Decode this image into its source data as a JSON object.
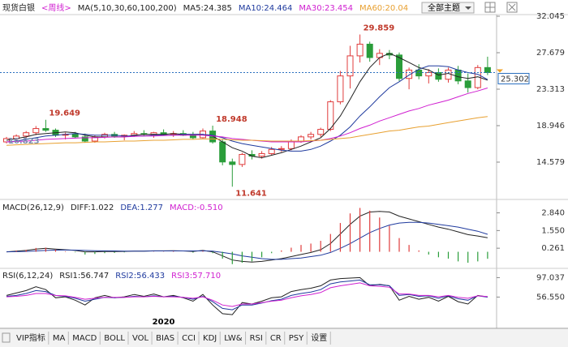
{
  "chart_data": [
    {
      "type": "candlestick",
      "title": "现货白银",
      "subtitle": "<周线>",
      "indicator": "MA(5,10,30,60,100,200)",
      "up_color": "#e03c3c",
      "down_color": "#2a9d3a",
      "categories": [
        null,
        null,
        null,
        null,
        null,
        null,
        null,
        null,
        null,
        null,
        null,
        null,
        null,
        null,
        null,
        null,
        "2020",
        null,
        null,
        null,
        null,
        null,
        null,
        null,
        null,
        null,
        null,
        null,
        null,
        null,
        null,
        null,
        null,
        null,
        null,
        null,
        null,
        null,
        null,
        null,
        null,
        null,
        null,
        null,
        null,
        null,
        null,
        null,
        null,
        null
      ],
      "open": [
        17.0,
        17.4,
        17.7,
        18.1,
        18.6,
        18.4,
        17.8,
        17.9,
        17.6,
        17.1,
        17.6,
        17.9,
        17.7,
        17.8,
        18.0,
        17.9,
        18.1,
        17.9,
        18.0,
        17.8,
        17.5,
        18.3,
        17.0,
        14.6,
        14.3,
        15.5,
        15.3,
        15.6,
        16.1,
        16.2,
        17.1,
        17.6,
        17.9,
        18.5,
        21.8,
        24.9,
        27.3,
        28.7,
        27.1,
        27.6,
        27.4,
        24.6,
        25.6,
        24.9,
        25.3,
        24.5,
        25.6,
        24.3,
        23.5,
        25.9
      ],
      "high": [
        17.6,
        17.9,
        18.3,
        18.9,
        19.649,
        18.6,
        18.1,
        18.2,
        18.0,
        17.8,
        18.1,
        18.2,
        17.9,
        18.3,
        18.4,
        18.2,
        18.5,
        18.3,
        18.4,
        18.2,
        18.6,
        18.948,
        17.3,
        15.0,
        15.7,
        16.0,
        15.9,
        16.4,
        16.5,
        17.3,
        17.8,
        18.2,
        18.7,
        22.0,
        25.5,
        28.5,
        29.859,
        29.0,
        28.1,
        28.0,
        27.7,
        25.9,
        26.3,
        25.7,
        25.8,
        25.9,
        26.1,
        25.2,
        26.2,
        27.2
      ],
      "low": [
        16.823,
        17.0,
        17.5,
        17.8,
        18.2,
        17.6,
        17.3,
        17.4,
        16.9,
        16.9,
        17.4,
        17.5,
        17.2,
        17.6,
        17.7,
        17.5,
        17.8,
        17.6,
        17.7,
        17.3,
        17.4,
        16.8,
        14.2,
        11.641,
        14.0,
        14.9,
        15.0,
        15.4,
        15.8,
        16.0,
        16.9,
        17.3,
        17.6,
        18.3,
        21.5,
        23.4,
        26.5,
        26.6,
        26.2,
        26.9,
        24.3,
        23.3,
        24.5,
        24.0,
        24.2,
        24.1,
        23.9,
        22.9,
        23.3,
        25.0
      ],
      "close": [
        17.4,
        17.7,
        18.1,
        18.6,
        18.4,
        17.8,
        17.9,
        17.6,
        17.1,
        17.6,
        17.9,
        17.7,
        17.8,
        18.0,
        17.9,
        18.1,
        17.9,
        18.0,
        17.8,
        17.5,
        18.3,
        17.0,
        14.6,
        14.3,
        15.5,
        15.3,
        15.6,
        16.1,
        16.2,
        17.1,
        17.6,
        17.9,
        18.5,
        21.8,
        24.9,
        27.3,
        28.7,
        27.1,
        27.6,
        27.4,
        24.6,
        25.6,
        24.9,
        25.3,
        24.5,
        25.6,
        24.3,
        23.5,
        25.9,
        25.302
      ],
      "series": [
        {
          "name": "MA5:24.385",
          "color": "#222222",
          "values": [
            17.2,
            17.4,
            17.6,
            17.9,
            18.0,
            18.1,
            18.2,
            18.1,
            17.8,
            17.6,
            17.6,
            17.6,
            17.6,
            17.8,
            17.9,
            17.9,
            17.9,
            18.0,
            17.9,
            17.9,
            17.9,
            17.7,
            17.0,
            16.3,
            15.9,
            15.3,
            15.1,
            15.4,
            15.7,
            16.1,
            16.5,
            17.0,
            17.5,
            18.6,
            20.1,
            22.1,
            24.2,
            25.9,
            27.1,
            27.6,
            27.1,
            26.5,
            25.9,
            25.6,
            25.0,
            25.2,
            24.8,
            24.6,
            24.8,
            24.385
          ]
        },
        {
          "name": "MA10:24.464",
          "color": "#1f3a9e",
          "values": [
            17.0,
            17.1,
            17.3,
            17.5,
            17.7,
            17.8,
            17.9,
            18.0,
            17.9,
            17.8,
            17.8,
            17.8,
            17.7,
            17.7,
            17.7,
            17.8,
            17.8,
            17.8,
            17.9,
            17.9,
            17.9,
            17.8,
            17.5,
            17.1,
            16.8,
            16.6,
            16.4,
            16.2,
            16.0,
            15.9,
            15.9,
            16.1,
            16.5,
            17.1,
            17.8,
            18.8,
            20.1,
            21.2,
            22.4,
            23.5,
            24.2,
            25.0,
            25.7,
            26.1,
            26.1,
            26.0,
            25.6,
            25.3,
            25.1,
            24.464
          ]
        },
        {
          "name": "MA30:23.454",
          "color": "#d01fd0",
          "values": [
            17.0,
            17.05,
            17.1,
            17.2,
            17.3,
            17.35,
            17.4,
            17.45,
            17.5,
            17.5,
            17.55,
            17.6,
            17.6,
            17.65,
            17.7,
            17.7,
            17.75,
            17.8,
            17.8,
            17.8,
            17.8,
            17.7,
            17.6,
            17.4,
            17.3,
            17.2,
            17.1,
            17.0,
            17.0,
            17.0,
            17.0,
            17.1,
            17.2,
            17.4,
            17.7,
            18.1,
            18.6,
            19.0,
            19.5,
            19.9,
            20.3,
            20.7,
            21.0,
            21.4,
            21.7,
            22.0,
            22.4,
            22.8,
            23.1,
            23.454
          ]
        },
        {
          "name": "MA60:20.04",
          "color": "#e8a030",
          "values": [
            16.6,
            16.65,
            16.7,
            16.75,
            16.8,
            16.85,
            16.9,
            16.9,
            16.95,
            17.0,
            17.0,
            17.05,
            17.1,
            17.1,
            17.15,
            17.2,
            17.2,
            17.25,
            17.3,
            17.3,
            17.35,
            17.35,
            17.3,
            17.25,
            17.2,
            17.2,
            17.15,
            17.1,
            17.1,
            17.1,
            17.1,
            17.15,
            17.2,
            17.3,
            17.4,
            17.5,
            17.7,
            17.9,
            18.1,
            18.3,
            18.4,
            18.6,
            18.8,
            18.9,
            19.1,
            19.3,
            19.5,
            19.7,
            19.9,
            20.04
          ]
        }
      ],
      "annotations": [
        19.649,
        18.948,
        11.641,
        29.859,
        16.823
      ],
      "ylim": [
        10.21,
        32.24
      ],
      "yticks": [
        32.045,
        27.679,
        23.313,
        18.946,
        14.579
      ]
    },
    {
      "type": "macd",
      "title": "MACD(26,12,9)",
      "series": [
        {
          "name": "DIFF:1.022",
          "color": "#222222",
          "kind": "line",
          "values": [
            0.0,
            0.05,
            0.1,
            0.2,
            0.25,
            0.2,
            0.15,
            0.1,
            0.0,
            0.0,
            0.02,
            0.02,
            0.03,
            0.05,
            0.05,
            0.07,
            0.07,
            0.08,
            0.06,
            0.03,
            0.1,
            0.0,
            -0.3,
            -0.6,
            -0.7,
            -0.75,
            -0.7,
            -0.6,
            -0.5,
            -0.35,
            -0.2,
            -0.05,
            0.15,
            0.6,
            1.3,
            2.0,
            2.6,
            2.9,
            2.95,
            2.9,
            2.6,
            2.4,
            2.2,
            2.0,
            1.8,
            1.65,
            1.45,
            1.25,
            1.15,
            1.022
          ]
        },
        {
          "name": "DEA:1.277",
          "color": "#1f3a9e",
          "kind": "line",
          "values": [
            0.0,
            0.01,
            0.03,
            0.06,
            0.1,
            0.12,
            0.13,
            0.12,
            0.1,
            0.08,
            0.07,
            0.06,
            0.05,
            0.05,
            0.05,
            0.06,
            0.06,
            0.06,
            0.06,
            0.06,
            0.07,
            0.05,
            -0.05,
            -0.15,
            -0.3,
            -0.4,
            -0.5,
            -0.55,
            -0.55,
            -0.5,
            -0.45,
            -0.35,
            -0.25,
            -0.05,
            0.25,
            0.6,
            1.0,
            1.4,
            1.7,
            1.95,
            2.1,
            2.15,
            2.15,
            2.1,
            2.0,
            1.9,
            1.8,
            1.65,
            1.5,
            1.277
          ]
        },
        {
          "name": "MACD:-0.510",
          "color": "#d01fd0",
          "kind": "bar",
          "up_color": "#e03c3c",
          "down_color": "#2a9d3a",
          "values": [
            0,
            0.08,
            0.14,
            0.28,
            0.3,
            0.16,
            0.04,
            -0.04,
            -0.2,
            -0.16,
            -0.1,
            -0.08,
            -0.04,
            0,
            0,
            0.02,
            0.02,
            0.04,
            0,
            -0.06,
            0.06,
            -0.1,
            -0.5,
            -0.9,
            -0.8,
            -0.7,
            -0.4,
            -0.1,
            0.1,
            0.3,
            0.5,
            0.6,
            0.8,
            1.3,
            2.1,
            2.8,
            3.2,
            3.0,
            2.5,
            1.9,
            1.0,
            0.5,
            0.1,
            -0.2,
            -0.4,
            -0.5,
            -0.7,
            -0.8,
            -0.7,
            -0.51
          ]
        }
      ],
      "ylim": [
        -1.15,
        3.76
      ],
      "yticks": [
        {
          "value": 2.84,
          "label": "2.840"
        },
        {
          "value": 1.55,
          "label": "1.550"
        },
        0.261
      ]
    },
    {
      "type": "line",
      "title": "RSI(6,12,24)",
      "series": [
        {
          "name": "RSI1:56.747",
          "color": "#222222",
          "values": [
            60,
            65,
            70,
            78,
            72,
            55,
            57,
            50,
            40,
            55,
            60,
            55,
            57,
            62,
            58,
            63,
            57,
            60,
            55,
            48,
            62,
            40,
            22,
            20,
            45,
            42,
            48,
            55,
            57,
            68,
            72,
            75,
            80,
            92,
            95,
            96,
            97,
            80,
            83,
            80,
            50,
            58,
            52,
            56,
            48,
            58,
            47,
            42,
            60,
            56.747
          ]
        },
        {
          "name": "RSI2:56.433",
          "color": "#1f3a9e",
          "values": [
            58,
            60,
            64,
            70,
            68,
            60,
            58,
            54,
            48,
            52,
            56,
            55,
            56,
            58,
            57,
            59,
            57,
            58,
            56,
            52,
            58,
            47,
            33,
            30,
            40,
            40,
            44,
            49,
            52,
            60,
            64,
            67,
            72,
            84,
            88,
            90,
            92,
            82,
            82,
            80,
            60,
            62,
            58,
            59,
            54,
            59,
            53,
            50,
            59,
            56.433
          ]
        },
        {
          "name": "RSI3:57.710",
          "color": "#d01fd0",
          "values": [
            57,
            58,
            60,
            64,
            64,
            60,
            59,
            56,
            52,
            54,
            56,
            56,
            56,
            57,
            57,
            58,
            57,
            57,
            56,
            54,
            57,
            50,
            40,
            37,
            42,
            42,
            45,
            48,
            50,
            55,
            59,
            62,
            66,
            76,
            80,
            83,
            86,
            80,
            79,
            77,
            63,
            63,
            60,
            60,
            57,
            60,
            56,
            54,
            59,
            57.71
          ]
        }
      ],
      "ylim": [
        -8.6,
        114.6
      ],
      "yticks": [
        97.037,
        {
          "value": 56.55,
          "label": "56.550"
        }
      ]
    }
  ],
  "ui": {
    "theme_select": "全部主题",
    "tabs": [
      "VIP指标",
      "MA",
      "MACD",
      "BOLL",
      "VOL",
      "BIAS",
      "CCI",
      "KDJ",
      "LW&",
      "RSI",
      "CR",
      "PSY",
      "设置"
    ]
  }
}
